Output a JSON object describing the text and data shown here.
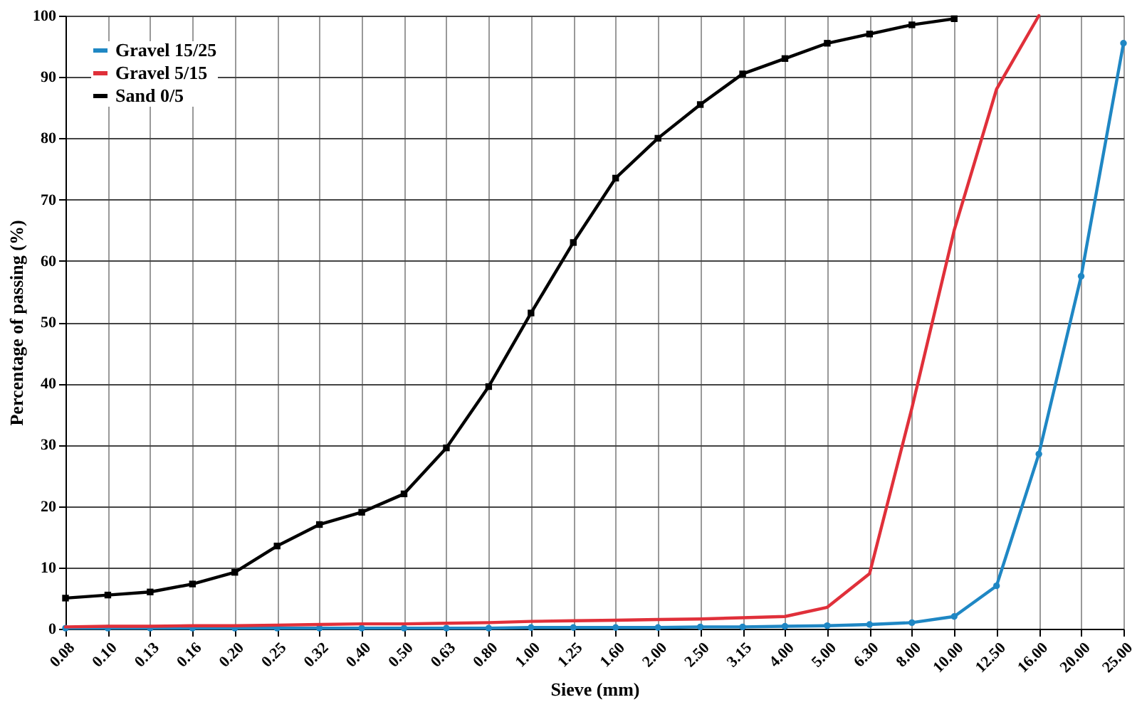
{
  "chart_data": {
    "type": "line",
    "xlabel": "Sieve (mm)",
    "ylabel": "Percentage of passing (%)",
    "categories": [
      "0.08",
      "0.10",
      "0.13",
      "0.16",
      "0.20",
      "0.25",
      "0.32",
      "0.40",
      "0.50",
      "0.63",
      "0.80",
      "1.00",
      "1.25",
      "1.60",
      "2.00",
      "2.50",
      "3.15",
      "4.00",
      "5.00",
      "6.30",
      "8.00",
      "10.00",
      "12.50",
      "16.00",
      "20.00",
      "25.00"
    ],
    "series": [
      {
        "name": "Gravel 15/25",
        "color": "#1f87c4",
        "marker": "circle",
        "values": [
          0.1,
          0.1,
          0.1,
          0.1,
          0.1,
          0.1,
          0.1,
          0.1,
          0.1,
          0.1,
          0.1,
          0.2,
          0.2,
          0.2,
          0.2,
          0.3,
          0.3,
          0.4,
          0.5,
          0.7,
          1,
          2,
          7,
          28.5,
          57.5,
          95.5
        ]
      },
      {
        "name": "Gravel 5/15",
        "color": "#e0303a",
        "marker": "none",
        "values": [
          0.3,
          0.4,
          0.4,
          0.5,
          0.5,
          0.6,
          0.7,
          0.8,
          0.8,
          0.9,
          1.0,
          1.2,
          1.3,
          1.4,
          1.5,
          1.6,
          1.8,
          2.0,
          3.5,
          9,
          36,
          65,
          88,
          100,
          null,
          null
        ]
      },
      {
        "name": "Sand 0/5",
        "color": "#000000",
        "marker": "square",
        "values": [
          5,
          5.5,
          6,
          7.3,
          9.2,
          13.5,
          17,
          19,
          22,
          29.5,
          39.5,
          51.5,
          63,
          73.5,
          80,
          85.5,
          90.5,
          93,
          95.5,
          97,
          98.5,
          99.5,
          null,
          null,
          null,
          null
        ]
      }
    ],
    "ylim": [
      0,
      100
    ],
    "yticks": [
      0,
      10,
      20,
      30,
      40,
      50,
      60,
      70,
      80,
      90,
      100
    ],
    "grid": true,
    "legend": "top left",
    "line_style": "solid"
  }
}
